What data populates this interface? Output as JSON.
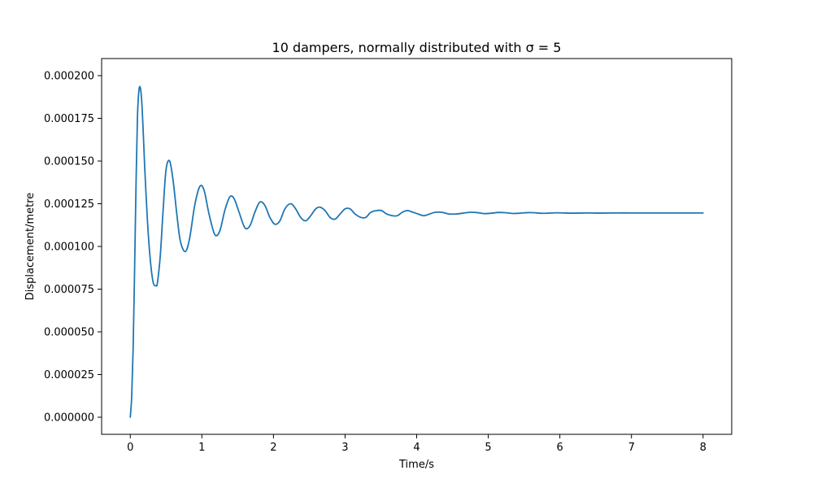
{
  "chart_data": {
    "type": "line",
    "title": "10 dampers, normally distributed with σ = 5",
    "xlabel": "Time/s",
    "ylabel": "Displacement/metre",
    "xlim": [
      -0.4,
      8.4
    ],
    "ylim": [
      -1e-05,
      0.00021
    ],
    "x_ticks": [
      0,
      1,
      2,
      3,
      4,
      5,
      6,
      7,
      8
    ],
    "x_tick_labels": [
      "0",
      "1",
      "2",
      "3",
      "4",
      "5",
      "6",
      "7",
      "8"
    ],
    "y_ticks": [
      0,
      2.5e-05,
      5e-05,
      7.5e-05,
      0.0001,
      0.000125,
      0.00015,
      0.000175,
      0.0002
    ],
    "y_tick_labels": [
      "0.000000",
      "0.000025",
      "0.000050",
      "0.000075",
      "0.000100",
      "0.000125",
      "0.000150",
      "0.000175",
      "0.000200"
    ],
    "grid": false,
    "line_color": "#1f77b4",
    "series": [
      {
        "values_x": [
          0,
          0.02,
          0.04,
          0.06,
          0.08,
          0.1,
          0.12,
          0.14,
          0.16,
          0.18,
          0.2,
          0.24,
          0.28,
          0.32,
          0.36,
          0.38,
          0.42,
          0.46,
          0.5,
          0.55,
          0.6,
          0.65,
          0.7,
          0.77,
          0.83,
          0.9,
          0.97,
          1.03,
          1.1,
          1.18,
          1.25,
          1.32,
          1.39,
          1.45,
          1.52,
          1.6,
          1.67,
          1.74,
          1.81,
          1.88,
          1.95,
          2.02,
          2.09,
          2.16,
          2.24,
          2.31,
          2.38,
          2.45,
          2.52,
          2.59,
          2.65,
          2.72,
          2.79,
          2.86,
          2.93,
          3.0,
          3.07,
          3.14,
          3.22,
          3.29,
          3.36,
          3.44,
          3.51,
          3.58,
          3.66,
          3.73,
          3.8,
          3.87,
          3.95,
          4.02,
          4.1,
          4.18,
          4.26,
          4.35,
          4.45,
          4.55,
          4.65,
          4.75,
          4.85,
          4.95,
          5.05,
          5.15,
          5.25,
          5.35,
          5.45,
          5.55,
          5.65,
          5.75,
          5.85,
          5.95,
          6.05,
          6.15,
          6.25,
          6.35,
          6.45,
          6.55,
          6.75,
          7.0,
          7.25,
          7.5,
          7.75,
          8.0
        ],
        "values_y": [
          0,
          1.2e-05,
          4e-05,
          8.5e-05,
          0.000135,
          0.000175,
          0.000191,
          0.000193,
          0.000185,
          0.000168,
          0.000148,
          0.000115,
          9.2e-05,
          7.9e-05,
          7.7e-05,
          7.9e-05,
          9.5e-05,
          0.000122,
          0.000145,
          0.00015,
          0.000138,
          0.000119,
          0.000103,
          9.7e-05,
          0.000105,
          0.000124,
          0.000135,
          0.000133,
          0.000119,
          0.000107,
          0.000109,
          0.000121,
          0.000129,
          0.000128,
          0.00012,
          0.000111,
          0.000112,
          0.00012,
          0.000126,
          0.000124,
          0.000117,
          0.000113,
          0.000115,
          0.000122,
          0.000125,
          0.000122,
          0.000117,
          0.000115,
          0.000118,
          0.000122,
          0.000123,
          0.000121,
          0.000117,
          0.000116,
          0.000119,
          0.000122,
          0.000122,
          0.000119,
          0.000117,
          0.000117,
          0.00012,
          0.000121,
          0.000121,
          0.000119,
          0.000118,
          0.000118,
          0.00012,
          0.000121,
          0.00012,
          0.000119,
          0.000118,
          0.000119,
          0.00012,
          0.00012,
          0.000119,
          0.000119,
          0.0001195,
          0.00012,
          0.0001198,
          0.0001192,
          0.0001195,
          0.0001199,
          0.0001197,
          0.0001193,
          0.0001195,
          0.0001198,
          0.0001197,
          0.0001194,
          0.0001195,
          0.0001197,
          0.0001196,
          0.0001195,
          0.0001195,
          0.0001196,
          0.0001196,
          0.0001195,
          0.0001196,
          0.0001196,
          0.0001196,
          0.0001196,
          0.0001196,
          0.0001196
        ]
      }
    ]
  }
}
